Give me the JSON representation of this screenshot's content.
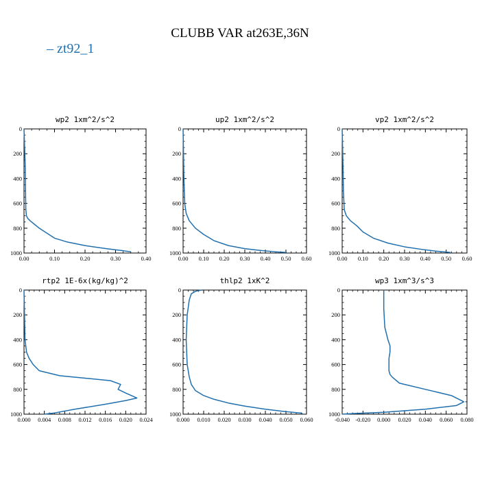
{
  "figure": {
    "title": "CLUBB VAR at263E,36N",
    "legend_label": "zt92_1",
    "line_color": "#1f6fae"
  },
  "chart_data": [
    {
      "type": "line",
      "title": "wp2   1xm^2/s^2",
      "xlim": [
        0,
        0.4
      ],
      "xticks": [
        0.0,
        0.1,
        0.2,
        0.3,
        0.4
      ],
      "xtick_labels": [
        "0.00",
        "0.10",
        "0.20",
        "0.30",
        "0.40"
      ],
      "ylim": [
        1000,
        0
      ],
      "yticks": [
        0,
        200,
        400,
        600,
        800,
        1000
      ],
      "ytick_labels": [
        "0",
        "200",
        "400",
        "600",
        "800",
        "1000"
      ],
      "series": [
        {
          "x": [
            0.0,
            0.002,
            0.004,
            0.005,
            0.006,
            0.008,
            0.012,
            0.02,
            0.035,
            0.05,
            0.075,
            0.1,
            0.14,
            0.2,
            0.27,
            0.32,
            0.35
          ],
          "y": [
            0,
            150,
            300,
            500,
            650,
            700,
            720,
            740,
            770,
            800,
            840,
            880,
            910,
            940,
            965,
            980,
            990
          ]
        }
      ]
    },
    {
      "type": "line",
      "title": "up2   1xm^2/s^2",
      "xlim": [
        0,
        0.6
      ],
      "xticks": [
        0.0,
        0.1,
        0.2,
        0.3,
        0.4,
        0.5,
        0.6
      ],
      "xtick_labels": [
        "0.00",
        "0.10",
        "0.20",
        "0.30",
        "0.40",
        "0.50",
        "0.60"
      ],
      "ylim": [
        1000,
        0
      ],
      "yticks": [
        0,
        200,
        400,
        600,
        800,
        1000
      ],
      "ytick_labels": [
        "0",
        "200",
        "400",
        "600",
        "800",
        "1000"
      ],
      "series": [
        {
          "x": [
            0.0,
            0.002,
            0.004,
            0.008,
            0.015,
            0.03,
            0.06,
            0.1,
            0.15,
            0.22,
            0.3,
            0.38,
            0.45,
            0.5
          ],
          "y": [
            0,
            200,
            400,
            600,
            680,
            740,
            800,
            850,
            900,
            940,
            965,
            980,
            990,
            995
          ]
        }
      ]
    },
    {
      "type": "line",
      "title": "vp2   1xm^2/s^2",
      "xlim": [
        0,
        0.6
      ],
      "xticks": [
        0.0,
        0.1,
        0.2,
        0.3,
        0.4,
        0.5,
        0.6
      ],
      "xtick_labels": [
        "0.00",
        "0.10",
        "0.20",
        "0.30",
        "0.40",
        "0.50",
        "0.60"
      ],
      "ylim": [
        1000,
        0
      ],
      "yticks": [
        0,
        200,
        400,
        600,
        800,
        1000
      ],
      "ytick_labels": [
        "0",
        "200",
        "400",
        "600",
        "800",
        "1000"
      ],
      "series": [
        {
          "x": [
            0.0,
            0.002,
            0.004,
            0.006,
            0.01,
            0.02,
            0.04,
            0.07,
            0.1,
            0.15,
            0.22,
            0.3,
            0.38,
            0.45,
            0.52
          ],
          "y": [
            0,
            150,
            300,
            500,
            650,
            700,
            740,
            780,
            830,
            880,
            920,
            950,
            970,
            985,
            995
          ]
        }
      ]
    },
    {
      "type": "line",
      "title": "rtp2   1E-6x(kg/kg)^2",
      "xlim": [
        0,
        0.024
      ],
      "xticks": [
        0.0,
        0.004,
        0.008,
        0.012,
        0.016,
        0.02,
        0.024
      ],
      "xtick_labels": [
        "0.000",
        "0.004",
        "0.008",
        "0.012",
        "0.016",
        "0.020",
        "0.024"
      ],
      "ylim": [
        1000,
        0
      ],
      "yticks": [
        0,
        200,
        400,
        600,
        800,
        1000
      ],
      "ytick_labels": [
        "0",
        "200",
        "400",
        "600",
        "800",
        "1000"
      ],
      "series": [
        {
          "x": [
            0.0,
            0.0001,
            0.0002,
            0.0005,
            0.001,
            0.0018,
            0.003,
            0.007,
            0.012,
            0.017,
            0.019,
            0.0185,
            0.02,
            0.0222,
            0.02,
            0.016,
            0.01,
            0.006,
            0.004
          ],
          "y": [
            0,
            200,
            400,
            500,
            550,
            600,
            650,
            690,
            710,
            730,
            760,
            800,
            830,
            870,
            890,
            920,
            960,
            990,
            1000
          ]
        }
      ]
    },
    {
      "type": "line",
      "title": "thlp2   1xK^2",
      "xlim": [
        0,
        0.06
      ],
      "xticks": [
        0.0,
        0.01,
        0.02,
        0.03,
        0.04,
        0.05,
        0.06
      ],
      "xtick_labels": [
        "0.000",
        "0.010",
        "0.020",
        "0.030",
        "0.040",
        "0.050",
        "0.060"
      ],
      "ylim": [
        1000,
        0
      ],
      "yticks": [
        0,
        200,
        400,
        600,
        800,
        1000
      ],
      "ytick_labels": [
        "0",
        "200",
        "400",
        "600",
        "800",
        "1000"
      ],
      "series": [
        {
          "x": [
            0.009,
            0.006,
            0.004,
            0.003,
            0.002,
            0.0015,
            0.002,
            0.003,
            0.004,
            0.006,
            0.01,
            0.015,
            0.022,
            0.03,
            0.04,
            0.05,
            0.057,
            0.058
          ],
          "y": [
            0,
            10,
            30,
            80,
            200,
            400,
            600,
            700,
            760,
            810,
            850,
            880,
            910,
            935,
            960,
            980,
            990,
            995
          ]
        }
      ]
    },
    {
      "type": "line",
      "title": "wp3   1xm^3/s^3",
      "xlim": [
        -0.04,
        0.08
      ],
      "xticks": [
        -0.04,
        -0.02,
        0.0,
        0.02,
        0.04,
        0.06,
        0.08
      ],
      "xtick_labels": [
        "-0.040",
        "-0.020",
        "0.000",
        "0.020",
        "0.040",
        "0.060",
        "0.080"
      ],
      "ylim": [
        1000,
        0
      ],
      "yticks": [
        0,
        200,
        400,
        600,
        800,
        1000
      ],
      "ytick_labels": [
        "0",
        "200",
        "400",
        "600",
        "800",
        "1000"
      ],
      "series": [
        {
          "x": [
            0.0,
            0.0,
            0.001,
            0.004,
            0.006,
            0.006,
            0.005,
            0.005,
            0.005,
            0.006,
            0.008,
            0.015,
            0.04,
            0.065,
            0.077,
            0.07,
            0.04,
            0.0,
            -0.03,
            -0.04
          ],
          "y": [
            0,
            150,
            300,
            400,
            450,
            500,
            550,
            600,
            650,
            680,
            700,
            750,
            800,
            850,
            900,
            930,
            960,
            985,
            995,
            1000
          ]
        }
      ]
    }
  ]
}
